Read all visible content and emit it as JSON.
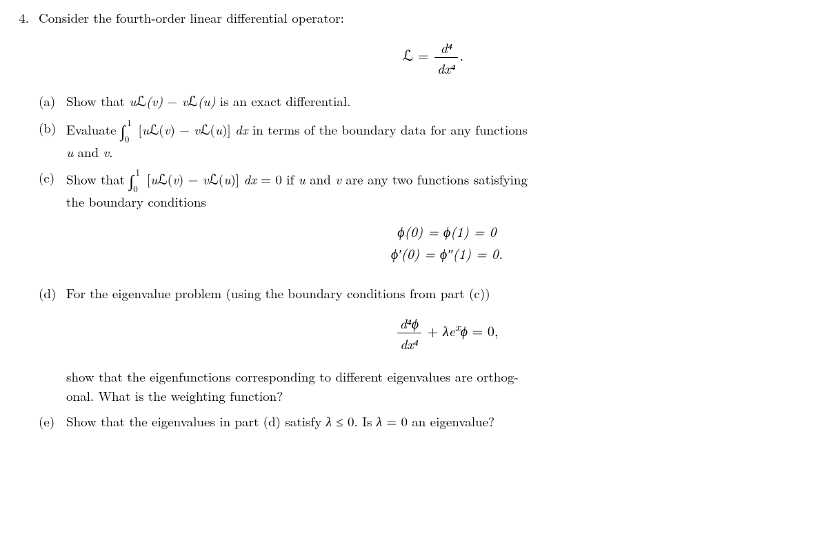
{
  "problem_number": "4.",
  "intro": "Consider the fourth-order linear differential operator:",
  "operator_lhs": "ℒ =",
  "operator_num": "d⁴",
  "operator_den": "dx⁴",
  "operator_dot": ".",
  "parts": {
    "a": {
      "label": "(a)",
      "text_pre": "Show that ",
      "expr": "uℒ(v) − vℒ(u)",
      "text_post": " is an exact differential."
    },
    "b": {
      "label": "(b)",
      "text_pre": "Evaluate ",
      "int_lb": "0",
      "int_ub": "1",
      "integrand": "[uℒ(v) − vℒ(u)] dx",
      "text_mid": " in terms of the boundary data for any functions",
      "line2": "u and v."
    },
    "c": {
      "label": "(c)",
      "text_pre": "Show that ",
      "int_lb": "0",
      "int_ub": "1",
      "integrand": "[uℒ(v) − vℒ(u)] dx = 0",
      "text_mid": " if u and v are any two functions satisfying",
      "line2": "the boundary conditions",
      "bc1": "ϕ(0) = ϕ(1) = 0",
      "bc2": "ϕ′(0) = ϕ″(1) = 0."
    },
    "d": {
      "label": "(d)",
      "line1": "For the eigenvalue problem (using the boundary conditions from part (c))",
      "eq_num": "d⁴ϕ",
      "eq_den": "dx⁴",
      "eq_rest": " + λeˣϕ = 0,",
      "line2a": "show that the eigenfunctions corresponding to different eigenvalues are orthog-",
      "line2b": "onal. What is the weighting function?"
    },
    "e": {
      "label": "(e)",
      "text": "Show that the eigenvalues in part (d) satisfy λ ≤ 0. Is λ = 0 an eigenvalue?"
    }
  }
}
